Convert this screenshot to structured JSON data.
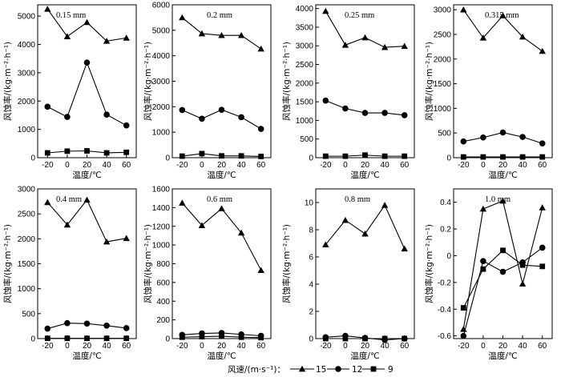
{
  "figure": {
    "legend_title": "风速/(m·s⁻¹)：",
    "legend_colon": ""
  },
  "chart_data": [
    {
      "type": "line",
      "annotation": "0.15 mm",
      "xlabel": "温度/℃",
      "ylabel": "风蚀率/(kg·m⁻²·h⁻¹)",
      "x": [
        -20,
        0,
        20,
        40,
        60
      ],
      "xlim": [
        -30,
        70
      ],
      "ylim": [
        0,
        5400
      ],
      "yticks": [
        0,
        1000,
        2000,
        3000,
        4000,
        5000
      ],
      "series": [
        {
          "name": "15",
          "marker": "triangle",
          "values": [
            5250,
            4280,
            4780,
            4120,
            4230
          ]
        },
        {
          "name": "12",
          "marker": "circle",
          "values": [
            1800,
            1440,
            3360,
            1520,
            1140
          ]
        },
        {
          "name": "9",
          "marker": "square",
          "values": [
            170,
            230,
            240,
            170,
            190
          ]
        }
      ]
    },
    {
      "type": "line",
      "annotation": "0.2 mm",
      "xlabel": "温度/℃",
      "ylabel": "风蚀率/(kg·m⁻²·h⁻¹)",
      "x": [
        -20,
        0,
        20,
        40,
        60
      ],
      "xlim": [
        -30,
        70
      ],
      "ylim": [
        0,
        6000
      ],
      "yticks": [
        0,
        1000,
        2000,
        3000,
        4000,
        5000,
        6000
      ],
      "series": [
        {
          "name": "15",
          "marker": "triangle",
          "values": [
            5500,
            4870,
            4800,
            4800,
            4270
          ]
        },
        {
          "name": "12",
          "marker": "circle",
          "values": [
            1870,
            1530,
            1880,
            1590,
            1130
          ]
        },
        {
          "name": "9",
          "marker": "square",
          "values": [
            60,
            160,
            70,
            70,
            50
          ]
        }
      ]
    },
    {
      "type": "line",
      "annotation": "0.25 mm",
      "xlabel": "温度/℃",
      "ylabel": "风蚀率/(kg·m⁻²·h⁻¹)",
      "x": [
        -20,
        0,
        20,
        40,
        60
      ],
      "xlim": [
        -30,
        70
      ],
      "ylim": [
        0,
        4100
      ],
      "yticks": [
        0,
        500,
        1000,
        1500,
        2000,
        2500,
        3000,
        3500,
        4000
      ],
      "series": [
        {
          "name": "15",
          "marker": "triangle",
          "values": [
            3930,
            3020,
            3220,
            2960,
            2990
          ]
        },
        {
          "name": "12",
          "marker": "circle",
          "values": [
            1530,
            1320,
            1200,
            1200,
            1140
          ]
        },
        {
          "name": "9",
          "marker": "square",
          "values": [
            40,
            40,
            70,
            40,
            40
          ]
        }
      ]
    },
    {
      "type": "line",
      "annotation": "0.315 mm",
      "xlabel": "温度/℃",
      "ylabel": "风蚀率/(kg·m⁻²·h⁻¹)",
      "x": [
        -20,
        0,
        20,
        40,
        60
      ],
      "xlim": [
        -30,
        70
      ],
      "ylim": [
        0,
        3100
      ],
      "yticks": [
        0,
        500,
        1000,
        1500,
        2000,
        2500,
        3000
      ],
      "series": [
        {
          "name": "15",
          "marker": "triangle",
          "values": [
            3000,
            2430,
            2880,
            2450,
            2160
          ]
        },
        {
          "name": "12",
          "marker": "circle",
          "values": [
            330,
            410,
            510,
            420,
            290
          ]
        },
        {
          "name": "9",
          "marker": "square",
          "values": [
            15,
            15,
            15,
            15,
            15
          ]
        }
      ]
    },
    {
      "type": "line",
      "annotation": "0.4 mm",
      "xlabel": "温度/℃",
      "ylabel": "风蚀率/(kg·m⁻²·h⁻¹)",
      "x": [
        -20,
        0,
        20,
        40,
        60
      ],
      "xlim": [
        -30,
        70
      ],
      "ylim": [
        0,
        3000
      ],
      "yticks": [
        0,
        500,
        1000,
        1500,
        2000,
        2500,
        3000
      ],
      "series": [
        {
          "name": "15",
          "marker": "triangle",
          "values": [
            2730,
            2280,
            2780,
            1940,
            2010
          ]
        },
        {
          "name": "12",
          "marker": "circle",
          "values": [
            200,
            310,
            300,
            260,
            210
          ]
        },
        {
          "name": "9",
          "marker": "square",
          "values": [
            5,
            5,
            5,
            5,
            5
          ]
        }
      ]
    },
    {
      "type": "line",
      "annotation": "0.6 mm",
      "xlabel": "温度/℃",
      "ylabel": "风蚀率/(kg·m⁻²·h⁻¹)",
      "x": [
        -20,
        0,
        20,
        40,
        60
      ],
      "xlim": [
        -30,
        70
      ],
      "ylim": [
        0,
        1600
      ],
      "yticks": [
        0,
        200,
        400,
        600,
        800,
        1000,
        1200,
        1400,
        1600
      ],
      "series": [
        {
          "name": "15",
          "marker": "triangle",
          "values": [
            1450,
            1210,
            1390,
            1130,
            730
          ]
        },
        {
          "name": "12",
          "marker": "circle",
          "values": [
            40,
            55,
            60,
            45,
            30
          ]
        },
        {
          "name": "9",
          "marker": "square",
          "values": [
            15,
            20,
            25,
            15,
            10
          ]
        }
      ]
    },
    {
      "type": "line",
      "annotation": "0.8 mm",
      "xlabel": "温度/℃",
      "ylabel": "风蚀率/(kg·m⁻²·h⁻¹)",
      "x": [
        -20,
        0,
        20,
        40,
        60
      ],
      "xlim": [
        -30,
        70
      ],
      "ylim": [
        0,
        11
      ],
      "yticks": [
        0,
        2,
        4,
        6,
        8,
        10
      ],
      "series": [
        {
          "name": "15",
          "marker": "triangle",
          "values": [
            6.9,
            8.7,
            7.7,
            9.8,
            6.6
          ]
        },
        {
          "name": "12",
          "marker": "circle",
          "values": [
            0.1,
            0.2,
            0.05,
            -0.1,
            0.0
          ]
        },
        {
          "name": "9",
          "marker": "square",
          "values": [
            0.0,
            0.0,
            0.0,
            0.0,
            0.0
          ]
        }
      ]
    },
    {
      "type": "line",
      "annotation": "1.0 mm",
      "xlabel": "温度/℃",
      "ylabel": "风蚀率/(kg·m⁻²·h⁻¹)",
      "x": [
        -20,
        0,
        20,
        40,
        60
      ],
      "xlim": [
        -30,
        70
      ],
      "ylim": [
        -0.62,
        0.5
      ],
      "yticks": [
        -0.6,
        -0.4,
        -0.2,
        0.0,
        0.2,
        0.4
      ],
      "series": [
        {
          "name": "15",
          "marker": "triangle",
          "values": [
            -0.55,
            0.35,
            0.41,
            -0.21,
            0.36
          ]
        },
        {
          "name": "12",
          "marker": "circle",
          "values": [
            -0.6,
            -0.04,
            -0.12,
            -0.05,
            0.06
          ]
        },
        {
          "name": "9",
          "marker": "square",
          "values": [
            -0.39,
            -0.1,
            0.04,
            -0.07,
            -0.08
          ]
        }
      ]
    }
  ]
}
